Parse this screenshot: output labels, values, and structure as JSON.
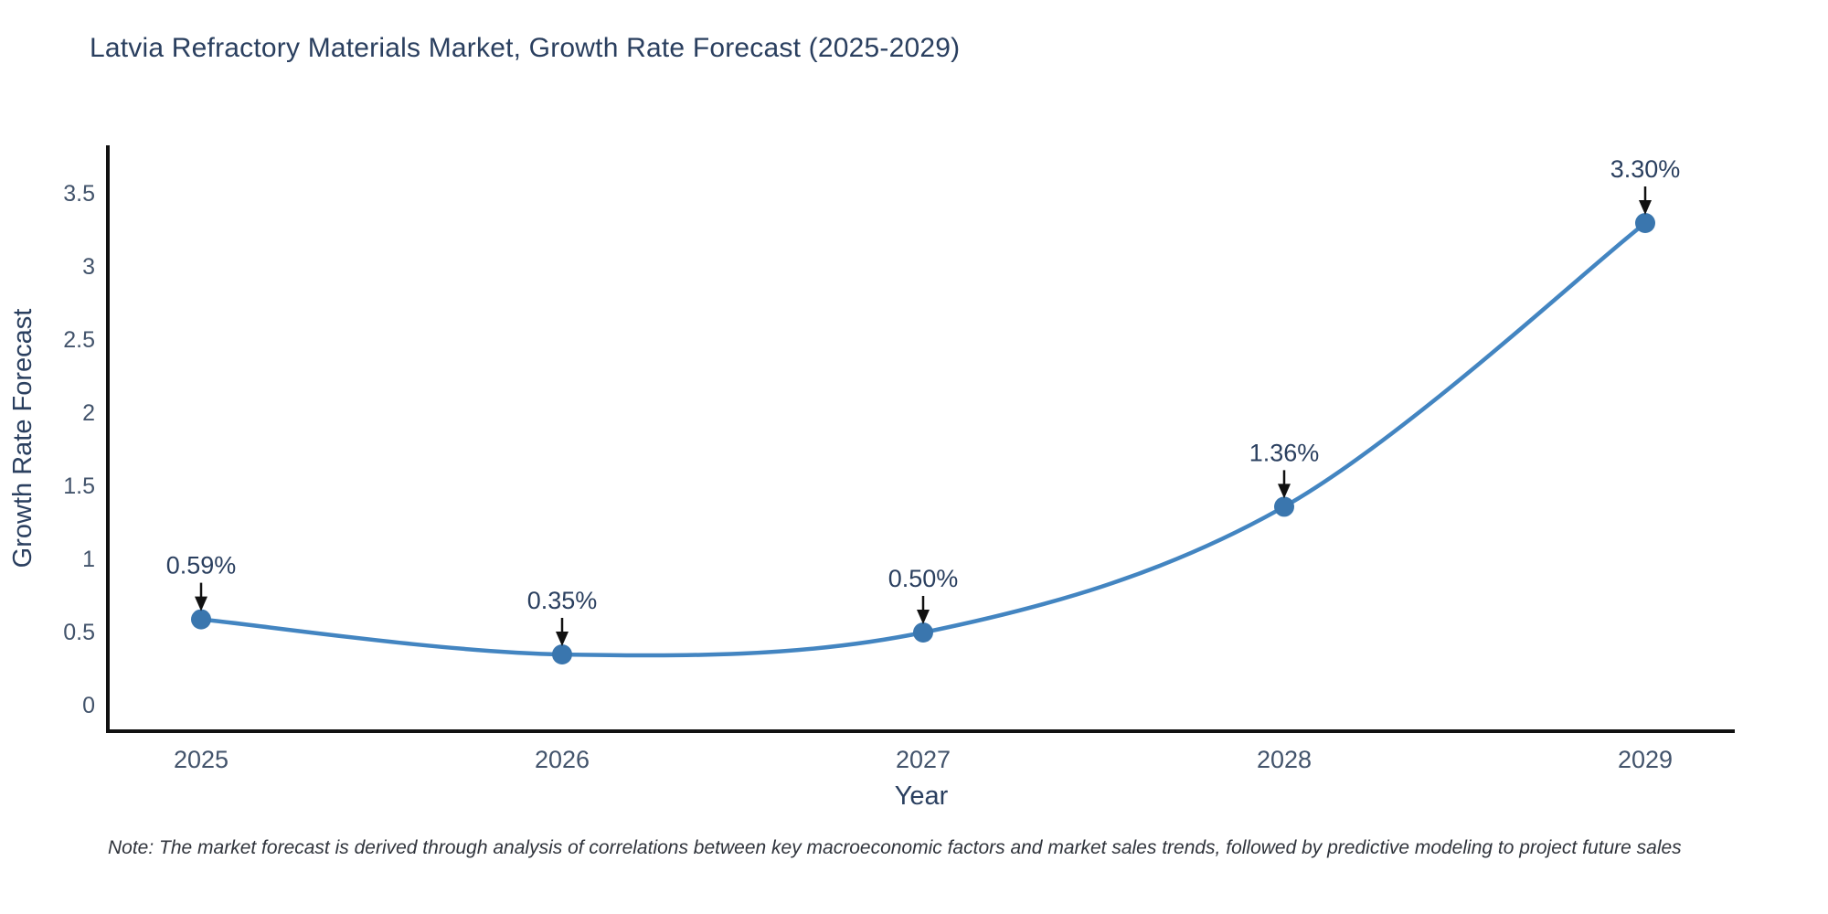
{
  "note": "Note: The market forecast is derived through analysis of correlations between key macroeconomic factors and market sales trends, followed by predictive modeling to project future sales",
  "chart_data": {
    "type": "line",
    "title": "Latvia Refractory Materials Market, Growth Rate Forecast (2025-2029)",
    "xlabel": "Year",
    "ylabel": "Growth Rate Forecast",
    "x": [
      2025,
      2026,
      2027,
      2028,
      2029
    ],
    "values": [
      0.59,
      0.35,
      0.5,
      1.36,
      3.3
    ],
    "point_labels": [
      "0.59%",
      "0.35%",
      "0.50%",
      "1.36%",
      "3.30%"
    ],
    "yticks": [
      0,
      0.5,
      1,
      1.5,
      2,
      2.5,
      3,
      3.5
    ],
    "xticks": [
      "2025",
      "2026",
      "2027",
      "2028",
      "2029"
    ],
    "ylim": [
      -0.18,
      3.84
    ],
    "grid": false,
    "legend": "none",
    "line_shape": "spline",
    "colors": {
      "line": "#4385c1",
      "marker": "#3a76ae",
      "axis": "#111111",
      "tick_text": "#42536b",
      "axis_title_text": "#2a3f5f",
      "annotation_text": "#2a3f5f",
      "annotation_arrow": "#111111",
      "title_text": "#2a3f5f"
    }
  }
}
